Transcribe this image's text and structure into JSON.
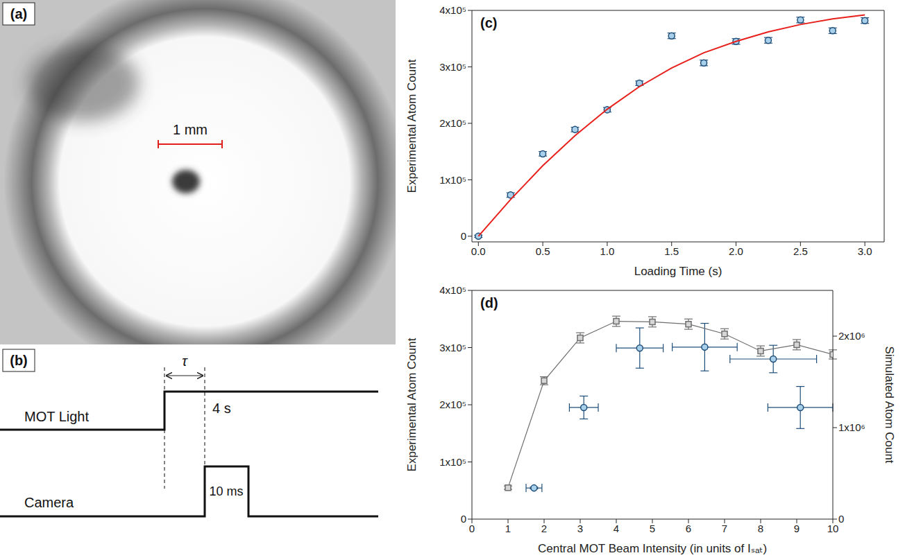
{
  "panel_a": {
    "label": "(a)",
    "scale_bar": "1 mm"
  },
  "panel_b": {
    "label": "(b)",
    "interval": "τ",
    "rows": [
      {
        "name": "MOT Light",
        "duration": "4 s"
      },
      {
        "name": "Camera",
        "duration": "10 ms"
      }
    ]
  },
  "chart_data": [
    {
      "panel": "(c)",
      "type": "scatter",
      "x_label": "Loading Time (s)",
      "y_label": "Experimental Atom Count",
      "xlim": [
        -0.05,
        3.15
      ],
      "xticks": [
        {
          "value": 0,
          "label": "0.0"
        },
        0.5,
        {
          "value": 1,
          "label": "1.0"
        },
        1.5,
        {
          "value": 2,
          "label": "2.0"
        },
        2.5,
        {
          "value": 3,
          "label": "3.0"
        }
      ],
      "ylim": [
        -10000,
        400000
      ],
      "yticks": [
        0,
        {
          "value": 100000,
          "label": "1x10⁵"
        },
        {
          "value": 200000,
          "label": "2x10⁵"
        },
        {
          "value": 300000,
          "label": "3x10⁵"
        },
        {
          "value": 400000,
          "label": "4x10⁵"
        }
      ],
      "x": [
        0,
        0.25,
        0.5,
        0.75,
        1.0,
        1.25,
        1.5,
        1.75,
        2.0,
        2.25,
        2.5,
        2.75,
        3.0
      ],
      "series": [
        {
          "type": "scatter",
          "marker": "circle",
          "color": "#1f4e79",
          "values": [
            0,
            73000,
            146000,
            189000,
            224000,
            271000,
            355000,
            307000,
            345000,
            347000,
            383000,
            364000,
            382000
          ],
          "errors": [
            2000,
            4000,
            4000,
            4000,
            4000,
            4000,
            5000,
            5000,
            5000,
            5000,
            5000,
            5000,
            5000
          ]
        },
        {
          "type": "line",
          "marker": "none",
          "color": "#e8201c",
          "values": [
            0,
            65000,
            125000,
            178000,
            225000,
            265000,
            298000,
            325000,
            345000,
            362000,
            375000,
            385000,
            392000
          ]
        }
      ]
    },
    {
      "panel": "(d)",
      "type": "scatter",
      "x_label": "Central MOT Beam Intensity (in units of Iₛₐₜ)",
      "y_label": "Experimental Atom Count",
      "y2_label": "Simulated Atom Count",
      "xlim": [
        0,
        10
      ],
      "xticks": [
        0,
        1,
        2,
        3,
        4,
        5,
        6,
        7,
        8,
        9,
        10
      ],
      "ylim": [
        0,
        400000
      ],
      "yticks": [
        0,
        {
          "value": 100000,
          "label": "1x10⁵"
        },
        {
          "value": 200000,
          "label": "2x10⁵"
        },
        {
          "value": 300000,
          "label": "3x10⁵"
        },
        {
          "value": 400000,
          "label": "4x10⁵"
        }
      ],
      "y2lim": [
        0,
        2500000
      ],
      "y2ticks": [
        0,
        {
          "value": 1000000,
          "label": "1x10⁶"
        },
        {
          "value": 2000000,
          "label": "2x10⁶"
        }
      ],
      "series": [
        {
          "type": "line",
          "marker": "square",
          "color": "#6e6e6e",
          "x": [
            1,
            2,
            3,
            4,
            5,
            6,
            7,
            8,
            9,
            10
          ],
          "values": [
            55000,
            242000,
            317000,
            346000,
            345000,
            341000,
            324000,
            294000,
            305000,
            288000
          ],
          "errors": [
            3000,
            7000,
            9000,
            9000,
            9000,
            9000,
            9000,
            9000,
            9000,
            8000
          ]
        },
        {
          "type": "scatter",
          "marker": "circle",
          "axis": "y2",
          "color": "#1f4e79",
          "x": [
            1.72,
            3.1,
            4.65,
            6.45,
            8.35,
            9.1
          ],
          "values": [
            340000,
            1220000,
            1870000,
            1880000,
            1750000,
            1220000
          ],
          "errors": [
            10000,
            125000,
            220000,
            260000,
            150000,
            230000
          ],
          "x_errors": [
            0.22,
            0.4,
            0.65,
            0.9,
            1.2,
            0.9
          ]
        }
      ]
    }
  ]
}
